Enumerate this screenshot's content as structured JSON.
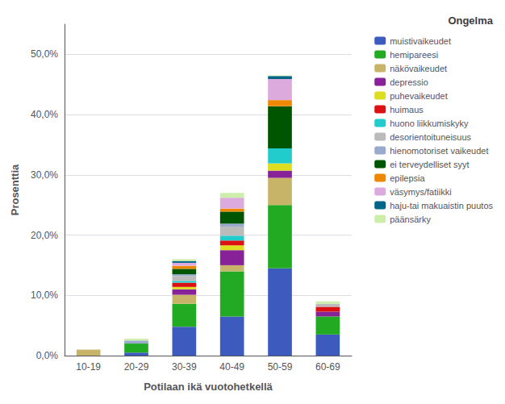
{
  "chart_data": {
    "type": "bar",
    "stacked": true,
    "grid": true,
    "legend": "right",
    "legend_title": "Ongelma",
    "xlabel": "Potilaan ikä vuotohetkellä",
    "ylabel": "Prosenttia",
    "categories": [
      "10-19",
      "20-29",
      "30-39",
      "40-49",
      "50-59",
      "60-69"
    ],
    "ylim": [
      0,
      55
    ],
    "yticks": [
      {
        "value": 0,
        "label": "0,0%"
      },
      {
        "value": 10,
        "label": "10,0%"
      },
      {
        "value": 20,
        "label": "20,0%"
      },
      {
        "value": 30,
        "label": "30,0%"
      },
      {
        "value": 40,
        "label": "40,0%"
      },
      {
        "value": 50,
        "label": "50,0%"
      }
    ],
    "series": [
      {
        "name": "muistivaikeudet",
        "color": "#3d5abf",
        "values": [
          0.0,
          0.5,
          4.8,
          6.5,
          14.5,
          3.5
        ]
      },
      {
        "name": "hemipareesi",
        "color": "#22aa22",
        "values": [
          0.0,
          1.5,
          3.8,
          7.5,
          10.5,
          3.0
        ]
      },
      {
        "name": "näkövaikeudet",
        "color": "#c8b468",
        "values": [
          1.0,
          0.0,
          1.5,
          1.0,
          4.5,
          0.0
        ]
      },
      {
        "name": "depressio",
        "color": "#882299",
        "values": [
          0.0,
          0.0,
          0.9,
          2.5,
          1.2,
          0.8
        ]
      },
      {
        "name": "puhevaikeudet",
        "color": "#dddd22",
        "values": [
          0.0,
          0.0,
          0.4,
          0.8,
          1.2,
          0.0
        ]
      },
      {
        "name": "huimaus",
        "color": "#dd1111",
        "values": [
          0.0,
          0.0,
          0.7,
          0.8,
          0.0,
          0.8
        ]
      },
      {
        "name": "huono liikkumiskyky",
        "color": "#22cccc",
        "values": [
          0.0,
          0.0,
          0.3,
          0.8,
          2.5,
          0.0
        ]
      },
      {
        "name": "desorientoituneisuus",
        "color": "#bbbbbb",
        "values": [
          0.0,
          0.0,
          0.8,
          1.5,
          0.0,
          0.5
        ]
      },
      {
        "name": "hienomotoriset vaikeudet",
        "color": "#99aacc",
        "values": [
          0.0,
          0.5,
          0.3,
          0.5,
          0.0,
          0.0
        ]
      },
      {
        "name": "ei terveydelliset syyt",
        "color": "#005500",
        "values": [
          0.0,
          0.0,
          0.9,
          2.0,
          7.0,
          0.0
        ]
      },
      {
        "name": "epilepsia",
        "color": "#ee8800",
        "values": [
          0.0,
          0.0,
          0.5,
          0.5,
          1.0,
          0.0
        ]
      },
      {
        "name": "väsymys/fatiikki",
        "color": "#ddaadd",
        "values": [
          0.0,
          0.0,
          0.5,
          1.8,
          3.5,
          0.0
        ]
      },
      {
        "name": "haju-tai makuaistin puutos",
        "color": "#006688",
        "values": [
          0.0,
          0.0,
          0.3,
          0.0,
          0.5,
          0.0
        ]
      },
      {
        "name": "päänsärky",
        "color": "#cceeaa",
        "values": [
          0.0,
          0.3,
          0.3,
          0.8,
          0.1,
          0.4
        ]
      }
    ]
  }
}
